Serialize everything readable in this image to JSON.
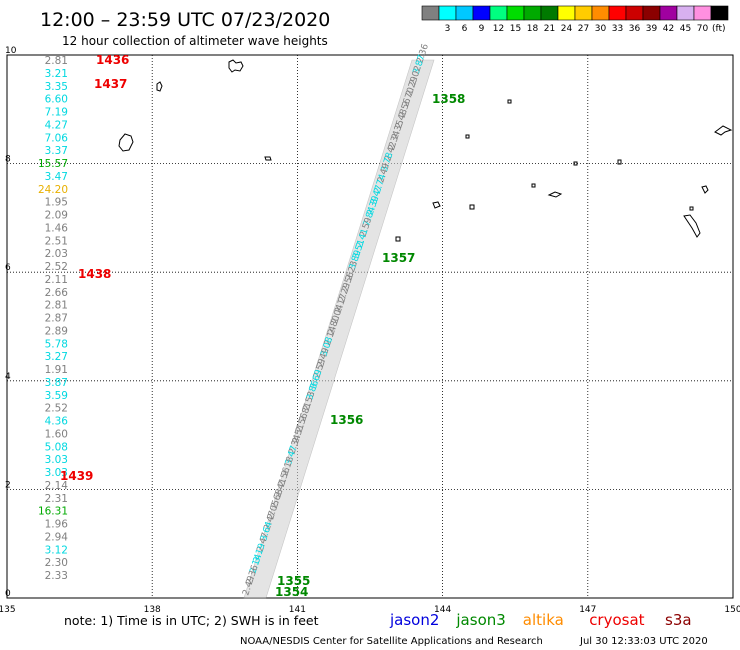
{
  "title": "12:00 – 23:59 UTC 07/23/2020",
  "subtitle": "12 hour collection of altimeter wave heights",
  "legend_scale": {
    "unit": "(ft)",
    "bins": [
      {
        "label": "",
        "color": "#808080"
      },
      {
        "label": "3",
        "color": "#00ffff"
      },
      {
        "label": "6",
        "color": "#00c8ff"
      },
      {
        "label": "9",
        "color": "#0000ff"
      },
      {
        "label": "12",
        "color": "#00ff80"
      },
      {
        "label": "15",
        "color": "#00dd00"
      },
      {
        "label": "18",
        "color": "#00aa00"
      },
      {
        "label": "21",
        "color": "#007a00"
      },
      {
        "label": "24",
        "color": "#ffff00"
      },
      {
        "label": "27",
        "color": "#ffcc00"
      },
      {
        "label": "30",
        "color": "#ff8c00"
      },
      {
        "label": "33",
        "color": "#ff0000"
      },
      {
        "label": "36",
        "color": "#cc0000"
      },
      {
        "label": "39",
        "color": "#8b0000"
      },
      {
        "label": "42",
        "color": "#a000a0"
      },
      {
        "label": "45",
        "color": "#d8b0f0"
      },
      {
        "label": "70",
        "color": "#ff90e0"
      },
      {
        "label": "",
        "color": "#000000"
      }
    ]
  },
  "map": {
    "lon_ticks": [
      "135",
      "138",
      "141",
      "144",
      "147",
      "150"
    ],
    "lat_ticks": [
      "0",
      "2",
      "4",
      "6",
      "8",
      "10"
    ]
  },
  "left_column": [
    {
      "text": "2.81",
      "color": "#808080"
    },
    {
      "text": "3.21",
      "color": "#00d8e0"
    },
    {
      "text": "3.35",
      "color": "#00d8e0"
    },
    {
      "text": "6.60",
      "color": "#00d8e0"
    },
    {
      "text": "7.19",
      "color": "#00d8e0"
    },
    {
      "text": "4.27",
      "color": "#00d8e0"
    },
    {
      "text": "7.06",
      "color": "#00d8e0"
    },
    {
      "text": "3.37",
      "color": "#00d8e0"
    },
    {
      "text": "15.57",
      "color": "#00aa00"
    },
    {
      "text": "3.47",
      "color": "#00d8e0"
    },
    {
      "text": "24.20",
      "color": "#e8b000"
    },
    {
      "text": "1.95",
      "color": "#808080"
    },
    {
      "text": "2.09",
      "color": "#808080"
    },
    {
      "text": "1.46",
      "color": "#808080"
    },
    {
      "text": "2.51",
      "color": "#808080"
    },
    {
      "text": "2.03",
      "color": "#808080"
    },
    {
      "text": "2.52",
      "color": "#808080"
    },
    {
      "text": "2.11",
      "color": "#808080"
    },
    {
      "text": "2.66",
      "color": "#808080"
    },
    {
      "text": "2.81",
      "color": "#808080"
    },
    {
      "text": "2.87",
      "color": "#808080"
    },
    {
      "text": "2.89",
      "color": "#808080"
    },
    {
      "text": "5.78",
      "color": "#00d8e0"
    },
    {
      "text": "3.27",
      "color": "#00d8e0"
    },
    {
      "text": "1.91",
      "color": "#808080"
    },
    {
      "text": "3.87",
      "color": "#00d8e0"
    },
    {
      "text": "3.59",
      "color": "#00d8e0"
    },
    {
      "text": "2.52",
      "color": "#808080"
    },
    {
      "text": "4.36",
      "color": "#00d8e0"
    },
    {
      "text": "1.60",
      "color": "#808080"
    },
    {
      "text": "5.08",
      "color": "#00d8e0"
    },
    {
      "text": "3.03",
      "color": "#00d8e0"
    },
    {
      "text": "3.03",
      "color": "#00d8e0"
    },
    {
      "text": "2.14",
      "color": "#808080"
    },
    {
      "text": "2.31",
      "color": "#808080"
    },
    {
      "text": "16.31",
      "color": "#00aa00"
    },
    {
      "text": "1.96",
      "color": "#808080"
    },
    {
      "text": "2.94",
      "color": "#808080"
    },
    {
      "text": "3.12",
      "color": "#00d8e0"
    },
    {
      "text": "2.30",
      "color": "#808080"
    },
    {
      "text": "2.33",
      "color": "#808080"
    }
  ],
  "red_time_labels": [
    "1436",
    "1437",
    "1438",
    "1439"
  ],
  "track_samples": [
    {
      "text": "2.36",
      "color": "#808080"
    },
    {
      "text": "3.87",
      "color": "#00d8e0"
    },
    {
      "text": "2.02",
      "color": "#808080"
    },
    {
      "text": "2.29",
      "color": "#808080"
    },
    {
      "text": "2.70",
      "color": "#808080"
    },
    {
      "text": "2.56",
      "color": "#808080"
    },
    {
      "text": "2.48",
      "color": "#808080"
    },
    {
      "text": "2.35",
      "color": "#808080"
    },
    {
      "text": "2.34",
      "color": "#808080"
    },
    {
      "text": "2.42",
      "color": "#808080"
    },
    {
      "text": "3.78",
      "color": "#00d8e0"
    },
    {
      "text": "2.49",
      "color": "#808080"
    },
    {
      "text": "2.74",
      "color": "#00d8e0"
    },
    {
      "text": "3.47",
      "color": "#00d8e0"
    },
    {
      "text": "2.39",
      "color": "#00d8e0"
    },
    {
      "text": "7.84",
      "color": "#00d8e0"
    },
    {
      "text": "2.59",
      "color": "#808080"
    },
    {
      "text": "2.41",
      "color": "#00d8e0"
    },
    {
      "text": "3.51",
      "color": "#00d8e0"
    },
    {
      "text": "3.89",
      "color": "#00d8e0"
    },
    {
      "text": "2.23",
      "color": "#808080"
    },
    {
      "text": "2.56",
      "color": "#808080"
    },
    {
      "text": "2.29",
      "color": "#808080"
    },
    {
      "text": "2.17",
      "color": "#808080"
    },
    {
      "text": "2.04",
      "color": "#808080"
    },
    {
      "text": "2.80",
      "color": "#808080"
    },
    {
      "text": "2.14",
      "color": "#808080"
    },
    {
      "text": "3.08",
      "color": "#00d8e0"
    },
    {
      "text": "2.49",
      "color": "#808080"
    },
    {
      "text": "2.59",
      "color": "#808080"
    },
    {
      "text": "3.69",
      "color": "#00d8e0"
    },
    {
      "text": "3.86",
      "color": "#00d8e0"
    },
    {
      "text": "2.53",
      "color": "#808080"
    },
    {
      "text": "2.81",
      "color": "#808080"
    },
    {
      "text": "2.56",
      "color": "#808080"
    },
    {
      "text": "2.51",
      "color": "#808080"
    },
    {
      "text": "2.34",
      "color": "#808080"
    },
    {
      "text": "3.47",
      "color": "#00d8e0"
    },
    {
      "text": "2.18",
      "color": "#808080"
    },
    {
      "text": "2.56",
      "color": "#808080"
    },
    {
      "text": "2.41",
      "color": "#808080"
    },
    {
      "text": "2.68",
      "color": "#808080"
    },
    {
      "text": "2.05",
      "color": "#808080"
    },
    {
      "text": "2.47",
      "color": "#808080"
    },
    {
      "text": "3.64",
      "color": "#00d8e0"
    },
    {
      "text": "2.47",
      "color": "#808080"
    },
    {
      "text": "3.19",
      "color": "#00d8e0"
    },
    {
      "text": "2.14",
      "color": "#00d8e0"
    },
    {
      "text": "2.36",
      "color": "#808080"
    },
    {
      "text": "2.49",
      "color": "#808080"
    }
  ],
  "green_time_labels": [
    {
      "text": "1358"
    },
    {
      "text": "1357"
    },
    {
      "text": "1356"
    },
    {
      "text": "1355"
    },
    {
      "text": "1354"
    }
  ],
  "footer": {
    "note": "note: 1) Time is in UTC; 2) SWH is in feet",
    "satellites": [
      {
        "name": "jason2",
        "color": "#0000dd"
      },
      {
        "name": "jason3",
        "color": "#008800"
      },
      {
        "name": "altika",
        "color": "#ff8c00"
      },
      {
        "name": "cryosat",
        "color": "#ee0000"
      },
      {
        "name": "s3a",
        "color": "#8b0000"
      }
    ],
    "credit": "NOAA/NESDIS Center for Satellite Applications and Research",
    "timestamp": "Jul 30 12:33:03 UTC 2020"
  }
}
